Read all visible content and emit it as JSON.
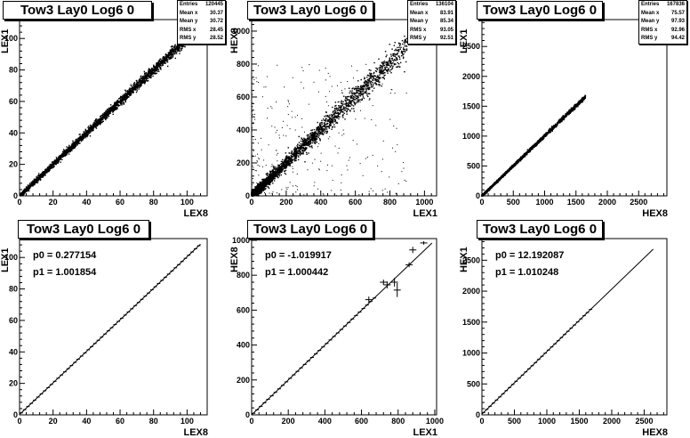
{
  "colors": {
    "background": "#ffffff",
    "axes": "#000000",
    "markers": "#000000"
  },
  "pads": [
    {
      "title": "Tow3 Lay0 Log6 0",
      "xlabel": "LEX8",
      "ylabel": "LEX1",
      "stats": [
        [
          "Entries",
          "120445"
        ],
        [
          "Mean x",
          "30.37"
        ],
        [
          "Mean y",
          "30.72"
        ],
        [
          "RMS x",
          "28.45"
        ],
        [
          "RMS y",
          "28.52"
        ]
      ],
      "fit": []
    },
    {
      "title": "Tow3 Lay0 Log6 0",
      "xlabel": "LEX1",
      "ylabel": "HEX8",
      "stats": [
        [
          "Entries",
          "136104"
        ],
        [
          "Mean x",
          "83.91"
        ],
        [
          "Mean y",
          "85.34"
        ],
        [
          "RMS x",
          "93.05"
        ],
        [
          "RMS y",
          "92.51"
        ]
      ],
      "fit": []
    },
    {
      "title": "Tow3 Lay0 Log6 0",
      "xlabel": "HEX8",
      "ylabel": "LEX1",
      "stats": [
        [
          "Entries",
          "167836"
        ],
        [
          "Mean x",
          "75.57"
        ],
        [
          "Mean y",
          "97.93"
        ],
        [
          "RMS x",
          "92.96"
        ],
        [
          "RMS y",
          "94.42"
        ]
      ],
      "fit": []
    },
    {
      "title": "Tow3 Lay0 Log6 0",
      "xlabel": "LEX8",
      "ylabel": "LEX1",
      "stats": [],
      "fit": [
        "p0 = 0.277154",
        "p1 = 1.001854"
      ]
    },
    {
      "title": "Tow3 Lay0 Log6 0",
      "xlabel": "LEX1",
      "ylabel": "HEX8",
      "stats": [],
      "fit": [
        "p0 = -1.019917",
        "p1 = 1.000442"
      ]
    },
    {
      "title": "Tow3 Lay0 Log6 0",
      "xlabel": "HEX8",
      "ylabel": "HEX1",
      "stats": [],
      "fit": [
        "p0 = 12.192087",
        "p1 = 1.010248"
      ]
    }
  ],
  "chart_data": [
    {
      "type": "scatter",
      "title": "Tow3 Lay0 Log6 0",
      "xlabel": "LEX8",
      "ylabel": "LEX1",
      "xlim": [
        0,
        112
      ],
      "ylim": [
        0,
        112
      ],
      "xticks": [
        0,
        20,
        40,
        60,
        80,
        100
      ],
      "yticks": [
        0,
        20,
        40,
        60,
        80,
        100
      ],
      "trend": {
        "x": [
          0,
          105
        ],
        "y": [
          0,
          105
        ]
      },
      "spread": 1.2,
      "outliers": 0
    },
    {
      "type": "scatter",
      "title": "Tow3 Lay0 Log6 0",
      "xlabel": "LEX1",
      "ylabel": "HEX8",
      "xlim": [
        0,
        1070
      ],
      "ylim": [
        0,
        1070
      ],
      "xticks": [
        0,
        200,
        400,
        600,
        800,
        1000
      ],
      "yticks": [
        0,
        200,
        400,
        600,
        800,
        1000
      ],
      "trend": {
        "x": [
          0,
          900
        ],
        "y": [
          0,
          910
        ]
      },
      "spread": 25,
      "outliers": 260
    },
    {
      "type": "scatter",
      "title": "Tow3 Lay0 Log6 0",
      "xlabel": "HEX8",
      "ylabel": "LEX1",
      "xlim": [
        0,
        2950
      ],
      "ylim": [
        0,
        2950
      ],
      "xticks": [
        0,
        500,
        1000,
        1500,
        2000,
        2500
      ],
      "yticks": [
        0,
        500,
        1000,
        1500,
        2000,
        2500
      ],
      "trend": {
        "x": [
          0,
          1650
        ],
        "y": [
          0,
          1660
        ]
      },
      "spread": 12,
      "outliers": 0
    },
    {
      "type": "line",
      "title": "Tow3 Lay0 Log6 0",
      "xlabel": "LEX8",
      "ylabel": "LEX1",
      "xlim": [
        0,
        112
      ],
      "ylim": [
        0,
        112
      ],
      "xticks": [
        0,
        20,
        40,
        60,
        80,
        100
      ],
      "yticks": [
        0,
        20,
        40,
        60,
        80,
        100
      ],
      "fit": {
        "p0": 0.277154,
        "p1": 1.001854,
        "x": [
          0,
          108
        ]
      },
      "profile": {
        "xstart": 0,
        "xend": 108,
        "step": 2
      }
    },
    {
      "type": "line",
      "title": "Tow3 Lay0 Log6 0",
      "xlabel": "LEX1",
      "ylabel": "HEX8",
      "xlim": [
        0,
        1010
      ],
      "ylim": [
        0,
        1010
      ],
      "xticks": [
        0,
        200,
        400,
        600,
        800,
        1000
      ],
      "yticks": [
        0,
        200,
        400,
        600,
        800,
        1000
      ],
      "fit": {
        "p0": -1.019917,
        "p1": 1.000442,
        "x": [
          0,
          985
        ]
      },
      "profile": {
        "xstart": 0,
        "xend": 680,
        "step": 20
      },
      "points": [
        {
          "x": 640,
          "y": 660,
          "ey": 18
        },
        {
          "x": 720,
          "y": 760,
          "ey": 15
        },
        {
          "x": 740,
          "y": 745,
          "ey": 20
        },
        {
          "x": 780,
          "y": 760,
          "ey": 25
        },
        {
          "x": 795,
          "y": 715,
          "ey": 40
        },
        {
          "x": 860,
          "y": 860,
          "ey": 14
        },
        {
          "x": 880,
          "y": 945,
          "ey": 18
        },
        {
          "x": 940,
          "y": 985,
          "ey": 10
        }
      ]
    },
    {
      "type": "line",
      "title": "Tow3 Lay0 Log6 0",
      "xlabel": "HEX8",
      "ylabel": "HEX1",
      "xlim": [
        0,
        2850
      ],
      "ylim": [
        0,
        2850
      ],
      "xticks": [
        0,
        500,
        1000,
        1500,
        2000,
        2500
      ],
      "yticks": [
        0,
        500,
        1000,
        1500,
        2000,
        2500
      ],
      "fit": {
        "p0": 12.192087,
        "p1": 1.010248,
        "x": [
          0,
          2640
        ]
      },
      "profile": {
        "xstart": 0,
        "xend": 1700,
        "step": 50
      }
    }
  ]
}
